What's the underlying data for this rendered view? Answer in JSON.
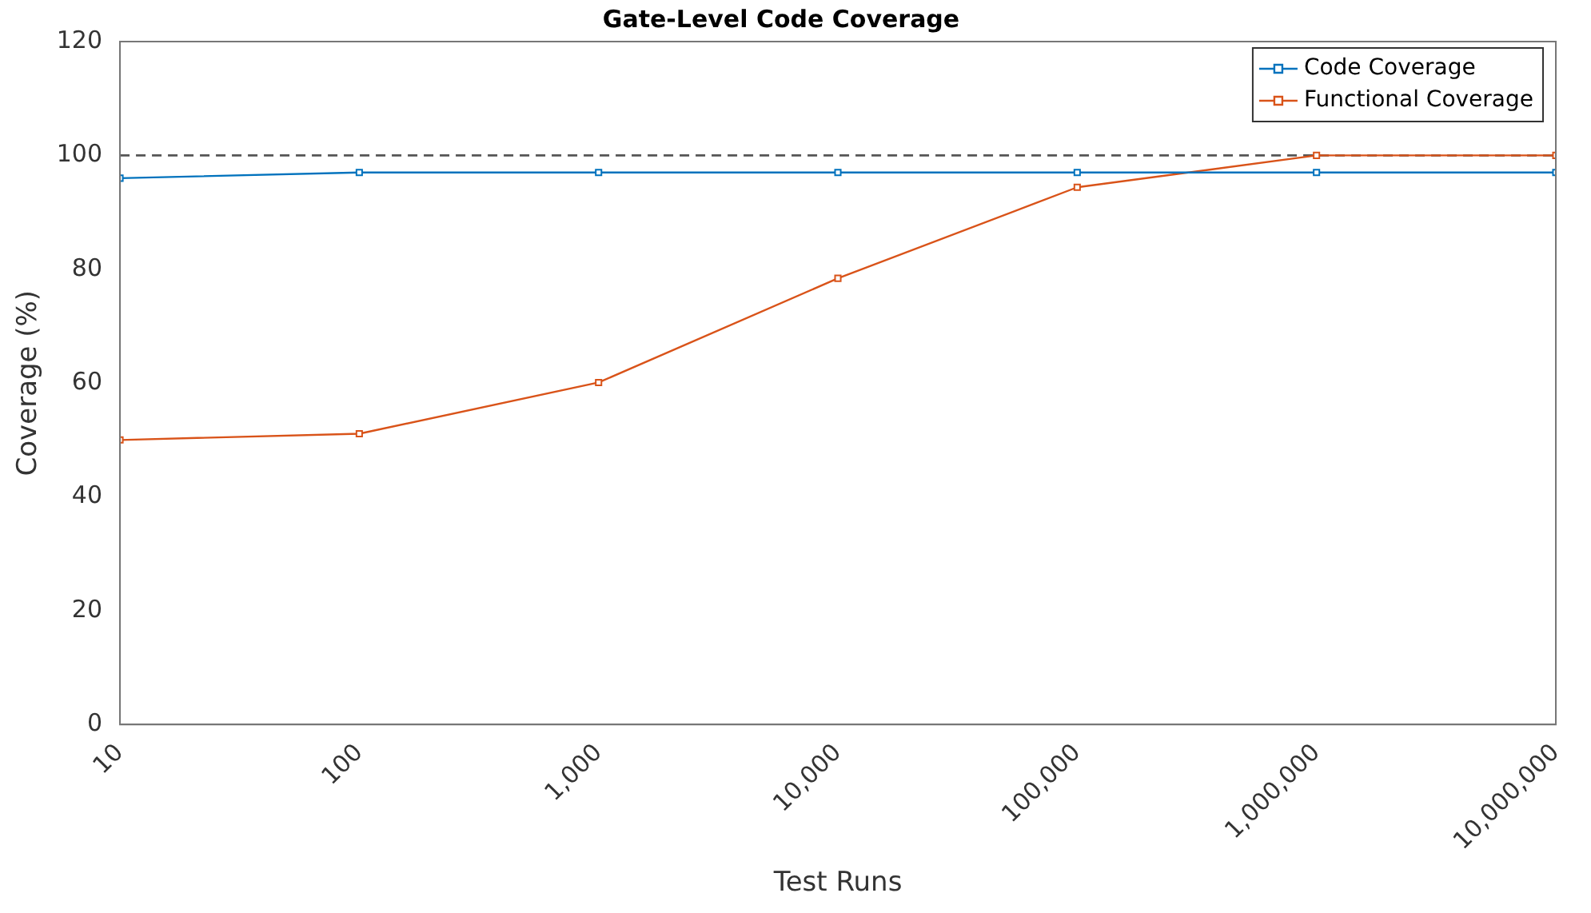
{
  "chart_data": {
    "type": "line",
    "title": "Gate-Level Code Coverage",
    "xlabel": "Test Runs",
    "ylabel": "Coverage (%)",
    "x": [
      10,
      100,
      1000,
      10000,
      100000,
      1000000,
      10000000
    ],
    "series": [
      {
        "name": "Code Coverage",
        "color": "#0072bd",
        "values": [
          96,
          97,
          97,
          97,
          97,
          97,
          97
        ]
      },
      {
        "name": "Functional Coverage",
        "color": "#d95319",
        "values": [
          50,
          51.1,
          60.1,
          78.4,
          94.4,
          100,
          100
        ]
      }
    ],
    "log": "x",
    "xlim": [
      10,
      10000000
    ],
    "xticks": [
      {
        "value": 10,
        "label": "10"
      },
      {
        "value": 100,
        "label": "100"
      },
      {
        "value": 1000,
        "label": "1,000"
      },
      {
        "value": 10000,
        "label": "10,000"
      },
      {
        "value": 100000,
        "label": "100,000"
      },
      {
        "value": 1000000,
        "label": "1,000,000"
      },
      {
        "value": 10000000,
        "label": "10,000,000"
      }
    ],
    "ylim": [
      0,
      120
    ],
    "yticks": [
      0,
      20,
      40,
      60,
      80,
      100,
      120
    ],
    "ref_lines": [
      {
        "axis": "y",
        "value": 100,
        "color": "#555555",
        "line_style": "dashed"
      }
    ],
    "grid": false,
    "legend": "top right",
    "marker": "square",
    "line_style": "solid"
  }
}
